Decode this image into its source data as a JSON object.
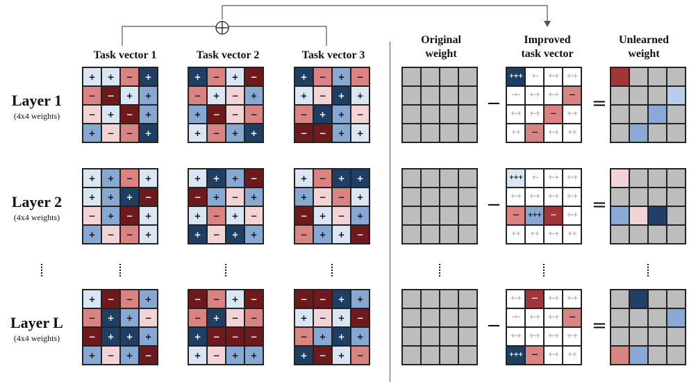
{
  "headers": {
    "task1": "Task vector 1",
    "task2": "Task vector 2",
    "task3": "Task vector 3",
    "original": "Original\nweight",
    "improved": "Improved\ntask vector",
    "unlearned": "Unlearned\nweight"
  },
  "symbols": {
    "oplus": "⊕",
    "minus": "−",
    "equals": "="
  },
  "layers": [
    {
      "title": "Layer 1",
      "sub": "(4x4 weights)",
      "task_vectors": [
        [
          [
            "lb",
            "+"
          ],
          [
            "lb",
            "+"
          ],
          [
            "mr",
            "−"
          ],
          [
            "db",
            "+"
          ],
          [
            "mr",
            "−"
          ],
          [
            "dr",
            "−"
          ],
          [
            "lb",
            "+"
          ],
          [
            "mb",
            "+"
          ],
          [
            "lr",
            "−"
          ],
          [
            "lb",
            "+"
          ],
          [
            "dr",
            "−"
          ],
          [
            "mb",
            "+"
          ],
          [
            "mb",
            "+"
          ],
          [
            "lr",
            "−"
          ],
          [
            "mr",
            "−"
          ],
          [
            "db",
            "+"
          ]
        ],
        [
          [
            "db",
            "+"
          ],
          [
            "mr",
            "−"
          ],
          [
            "lb",
            "+"
          ],
          [
            "dr",
            "−"
          ],
          [
            "mr",
            "−"
          ],
          [
            "lb",
            "+"
          ],
          [
            "lr",
            "−"
          ],
          [
            "mb",
            "+"
          ],
          [
            "mb",
            "+"
          ],
          [
            "dr",
            "−"
          ],
          [
            "lr",
            "−"
          ],
          [
            "mr",
            "−"
          ],
          [
            "lb",
            "+"
          ],
          [
            "mr",
            "−"
          ],
          [
            "mb",
            "+"
          ],
          [
            "db",
            "+"
          ]
        ],
        [
          [
            "db",
            "+"
          ],
          [
            "mr",
            "−"
          ],
          [
            "mb",
            "+"
          ],
          [
            "mr",
            "−"
          ],
          [
            "lb",
            "+"
          ],
          [
            "lr",
            "−"
          ],
          [
            "db",
            "+"
          ],
          [
            "lb",
            "+"
          ],
          [
            "mr",
            "−"
          ],
          [
            "db",
            "+"
          ],
          [
            "mb",
            "+"
          ],
          [
            "lr",
            "−"
          ],
          [
            "dr",
            "−"
          ],
          [
            "dr",
            "−"
          ],
          [
            "mb",
            "+"
          ],
          [
            "lb",
            "+"
          ]
        ]
      ],
      "original": [
        "g",
        "g",
        "g",
        "g",
        "g",
        "g",
        "g",
        "g",
        "g",
        "g",
        "g",
        "g",
        "g",
        "g",
        "g",
        "g"
      ],
      "improved": [
        [
          "db",
          "+++"
        ],
        [
          "w",
          "+-"
        ],
        [
          "w",
          "+-+"
        ],
        [
          "w",
          "+-+"
        ],
        [
          "w",
          "-+-"
        ],
        [
          "w",
          "+-+"
        ],
        [
          "w",
          "+-+"
        ],
        [
          "mr",
          "—"
        ],
        [
          "w",
          "+-+"
        ],
        [
          "w",
          "+-+"
        ],
        [
          "mr",
          "—"
        ],
        [
          "w",
          "+-+"
        ],
        [
          "w",
          "++"
        ],
        [
          "mr",
          "—"
        ],
        [
          "w",
          "+-+"
        ],
        [
          "w",
          "++"
        ]
      ],
      "unlearned": [
        "rr",
        "g",
        "g",
        "g",
        "g",
        "g",
        "g",
        "pb",
        "g",
        "g",
        "bb",
        "g",
        "g",
        "bb",
        "g",
        "g"
      ]
    },
    {
      "title": "Layer 2",
      "sub": "(4x4 weights)",
      "task_vectors": [
        [
          [
            "lb",
            "+"
          ],
          [
            "mb",
            "+"
          ],
          [
            "mr",
            "−"
          ],
          [
            "lb",
            "+"
          ],
          [
            "lb",
            "+"
          ],
          [
            "mb",
            "+"
          ],
          [
            "db",
            "+"
          ],
          [
            "dr",
            "−"
          ],
          [
            "lr",
            "−"
          ],
          [
            "mb",
            "+"
          ],
          [
            "dr",
            "−"
          ],
          [
            "lb",
            "+"
          ],
          [
            "mb",
            "+"
          ],
          [
            "lr",
            "−"
          ],
          [
            "mr",
            "−"
          ],
          [
            "lb",
            "+"
          ]
        ],
        [
          [
            "lb",
            "+"
          ],
          [
            "db",
            "+"
          ],
          [
            "mb",
            "+"
          ],
          [
            "dr",
            "−"
          ],
          [
            "dr",
            "−"
          ],
          [
            "mb",
            "+"
          ],
          [
            "lr",
            "−"
          ],
          [
            "mb",
            "+"
          ],
          [
            "lb",
            "+"
          ],
          [
            "mr",
            "−"
          ],
          [
            "lb",
            "+"
          ],
          [
            "lr",
            "−"
          ],
          [
            "db",
            "+"
          ],
          [
            "lr",
            "−"
          ],
          [
            "db",
            "+"
          ],
          [
            "mb",
            "+"
          ]
        ],
        [
          [
            "lb",
            "+"
          ],
          [
            "mr",
            "−"
          ],
          [
            "db",
            "+"
          ],
          [
            "db",
            "+"
          ],
          [
            "mb",
            "+"
          ],
          [
            "lr",
            "−"
          ],
          [
            "mr",
            "−"
          ],
          [
            "lb",
            "+"
          ],
          [
            "dr",
            "−"
          ],
          [
            "lb",
            "+"
          ],
          [
            "lr",
            "−"
          ],
          [
            "mb",
            "+"
          ],
          [
            "mr",
            "−"
          ],
          [
            "mb",
            "+"
          ],
          [
            "lb",
            "+"
          ],
          [
            "dr",
            "−"
          ]
        ]
      ],
      "original": [
        "g",
        "g",
        "g",
        "g",
        "g",
        "g",
        "g",
        "g",
        "g",
        "g",
        "g",
        "g",
        "g",
        "g",
        "g",
        "g"
      ],
      "improved": [
        [
          "lb",
          "+++"
        ],
        [
          "w",
          "+-"
        ],
        [
          "w",
          "+-+"
        ],
        [
          "w",
          "+-+"
        ],
        [
          "w",
          "+-+"
        ],
        [
          "w",
          "+-+"
        ],
        [
          "w",
          "+-+"
        ],
        [
          "w",
          "+-+"
        ],
        [
          "mr",
          "---"
        ],
        [
          "mb",
          "+++"
        ],
        [
          "rr",
          "—"
        ],
        [
          "w",
          "+-+"
        ],
        [
          "w",
          "++"
        ],
        [
          "w",
          "++"
        ],
        [
          "w",
          "+-+"
        ],
        [
          "w",
          "++"
        ]
      ],
      "unlearned": [
        "pr",
        "g",
        "g",
        "g",
        "g",
        "g",
        "g",
        "g",
        "bb",
        "pr",
        "nb",
        "g",
        "g",
        "g",
        "g",
        "g"
      ]
    },
    {
      "title": "Layer L",
      "sub": "(4x4 weights)",
      "task_vectors": [
        [
          [
            "lb",
            "+"
          ],
          [
            "dr",
            "−"
          ],
          [
            "mr",
            "−"
          ],
          [
            "mb",
            "+"
          ],
          [
            "mr",
            "−"
          ],
          [
            "db",
            "+"
          ],
          [
            "mb",
            "+"
          ],
          [
            "lr",
            "−"
          ],
          [
            "dr",
            "−"
          ],
          [
            "db",
            "+"
          ],
          [
            "db",
            "+"
          ],
          [
            "mb",
            "+"
          ],
          [
            "mb",
            "+"
          ],
          [
            "lr",
            "−"
          ],
          [
            "mb",
            "+"
          ],
          [
            "dr",
            "−"
          ]
        ],
        [
          [
            "dr",
            "−"
          ],
          [
            "mr",
            "−"
          ],
          [
            "lb",
            "+"
          ],
          [
            "dr",
            "−"
          ],
          [
            "mr",
            "−"
          ],
          [
            "db",
            "+"
          ],
          [
            "lr",
            "−"
          ],
          [
            "mr",
            "−"
          ],
          [
            "db",
            "+"
          ],
          [
            "dr",
            "−"
          ],
          [
            "dr",
            "−"
          ],
          [
            "dr",
            "−"
          ],
          [
            "lb",
            "+"
          ],
          [
            "lr",
            "−"
          ],
          [
            "mb",
            "+"
          ],
          [
            "mb",
            "+"
          ]
        ],
        [
          [
            "dr",
            "−"
          ],
          [
            "dr",
            "−"
          ],
          [
            "db",
            "+"
          ],
          [
            "mb",
            "+"
          ],
          [
            "lb",
            "+"
          ],
          [
            "lr",
            "−"
          ],
          [
            "lb",
            "+"
          ],
          [
            "dr",
            "−"
          ],
          [
            "mr",
            "−"
          ],
          [
            "mb",
            "+"
          ],
          [
            "db",
            "+"
          ],
          [
            "mb",
            "+"
          ],
          [
            "db",
            "+"
          ],
          [
            "dr",
            "−"
          ],
          [
            "lb",
            "+"
          ],
          [
            "mr",
            "−"
          ]
        ]
      ],
      "original": [
        "g",
        "g",
        "g",
        "g",
        "g",
        "g",
        "g",
        "g",
        "g",
        "g",
        "g",
        "g",
        "g",
        "g",
        "g",
        "g"
      ],
      "improved": [
        [
          "w",
          "+-+"
        ],
        [
          "rr",
          "---"
        ],
        [
          "w",
          "+-+"
        ],
        [
          "w",
          "+-+"
        ],
        [
          "w",
          "-+-"
        ],
        [
          "w",
          "+-+"
        ],
        [
          "w",
          "+-+"
        ],
        [
          "mr",
          "---"
        ],
        [
          "w",
          "+-+"
        ],
        [
          "w",
          "+-+"
        ],
        [
          "w",
          "+-+"
        ],
        [
          "w",
          "+-+"
        ],
        [
          "db",
          "+++"
        ],
        [
          "mr",
          "---"
        ],
        [
          "w",
          "+-+"
        ],
        [
          "w",
          "++"
        ]
      ],
      "unlearned": [
        "g",
        "nb",
        "g",
        "g",
        "g",
        "g",
        "g",
        "bb",
        "g",
        "g",
        "g",
        "g",
        "pr2",
        "bb",
        "g",
        "g"
      ]
    }
  ],
  "colors": {
    "db": "#1f3e63",
    "mb": "#86a8d3",
    "lb": "#dae6f3",
    "dr": "#6e1a1c",
    "mr": "#d98383",
    "lr": "#f2d4d6",
    "rr": "#a03637",
    "g": "#bdbdbd",
    "w": "#ffffff",
    "bb": "#8aa9d6",
    "pb": "#b9cde9",
    "nb": "#213f67",
    "pr": "#f2d4d6",
    "pr2": "#d98585"
  }
}
